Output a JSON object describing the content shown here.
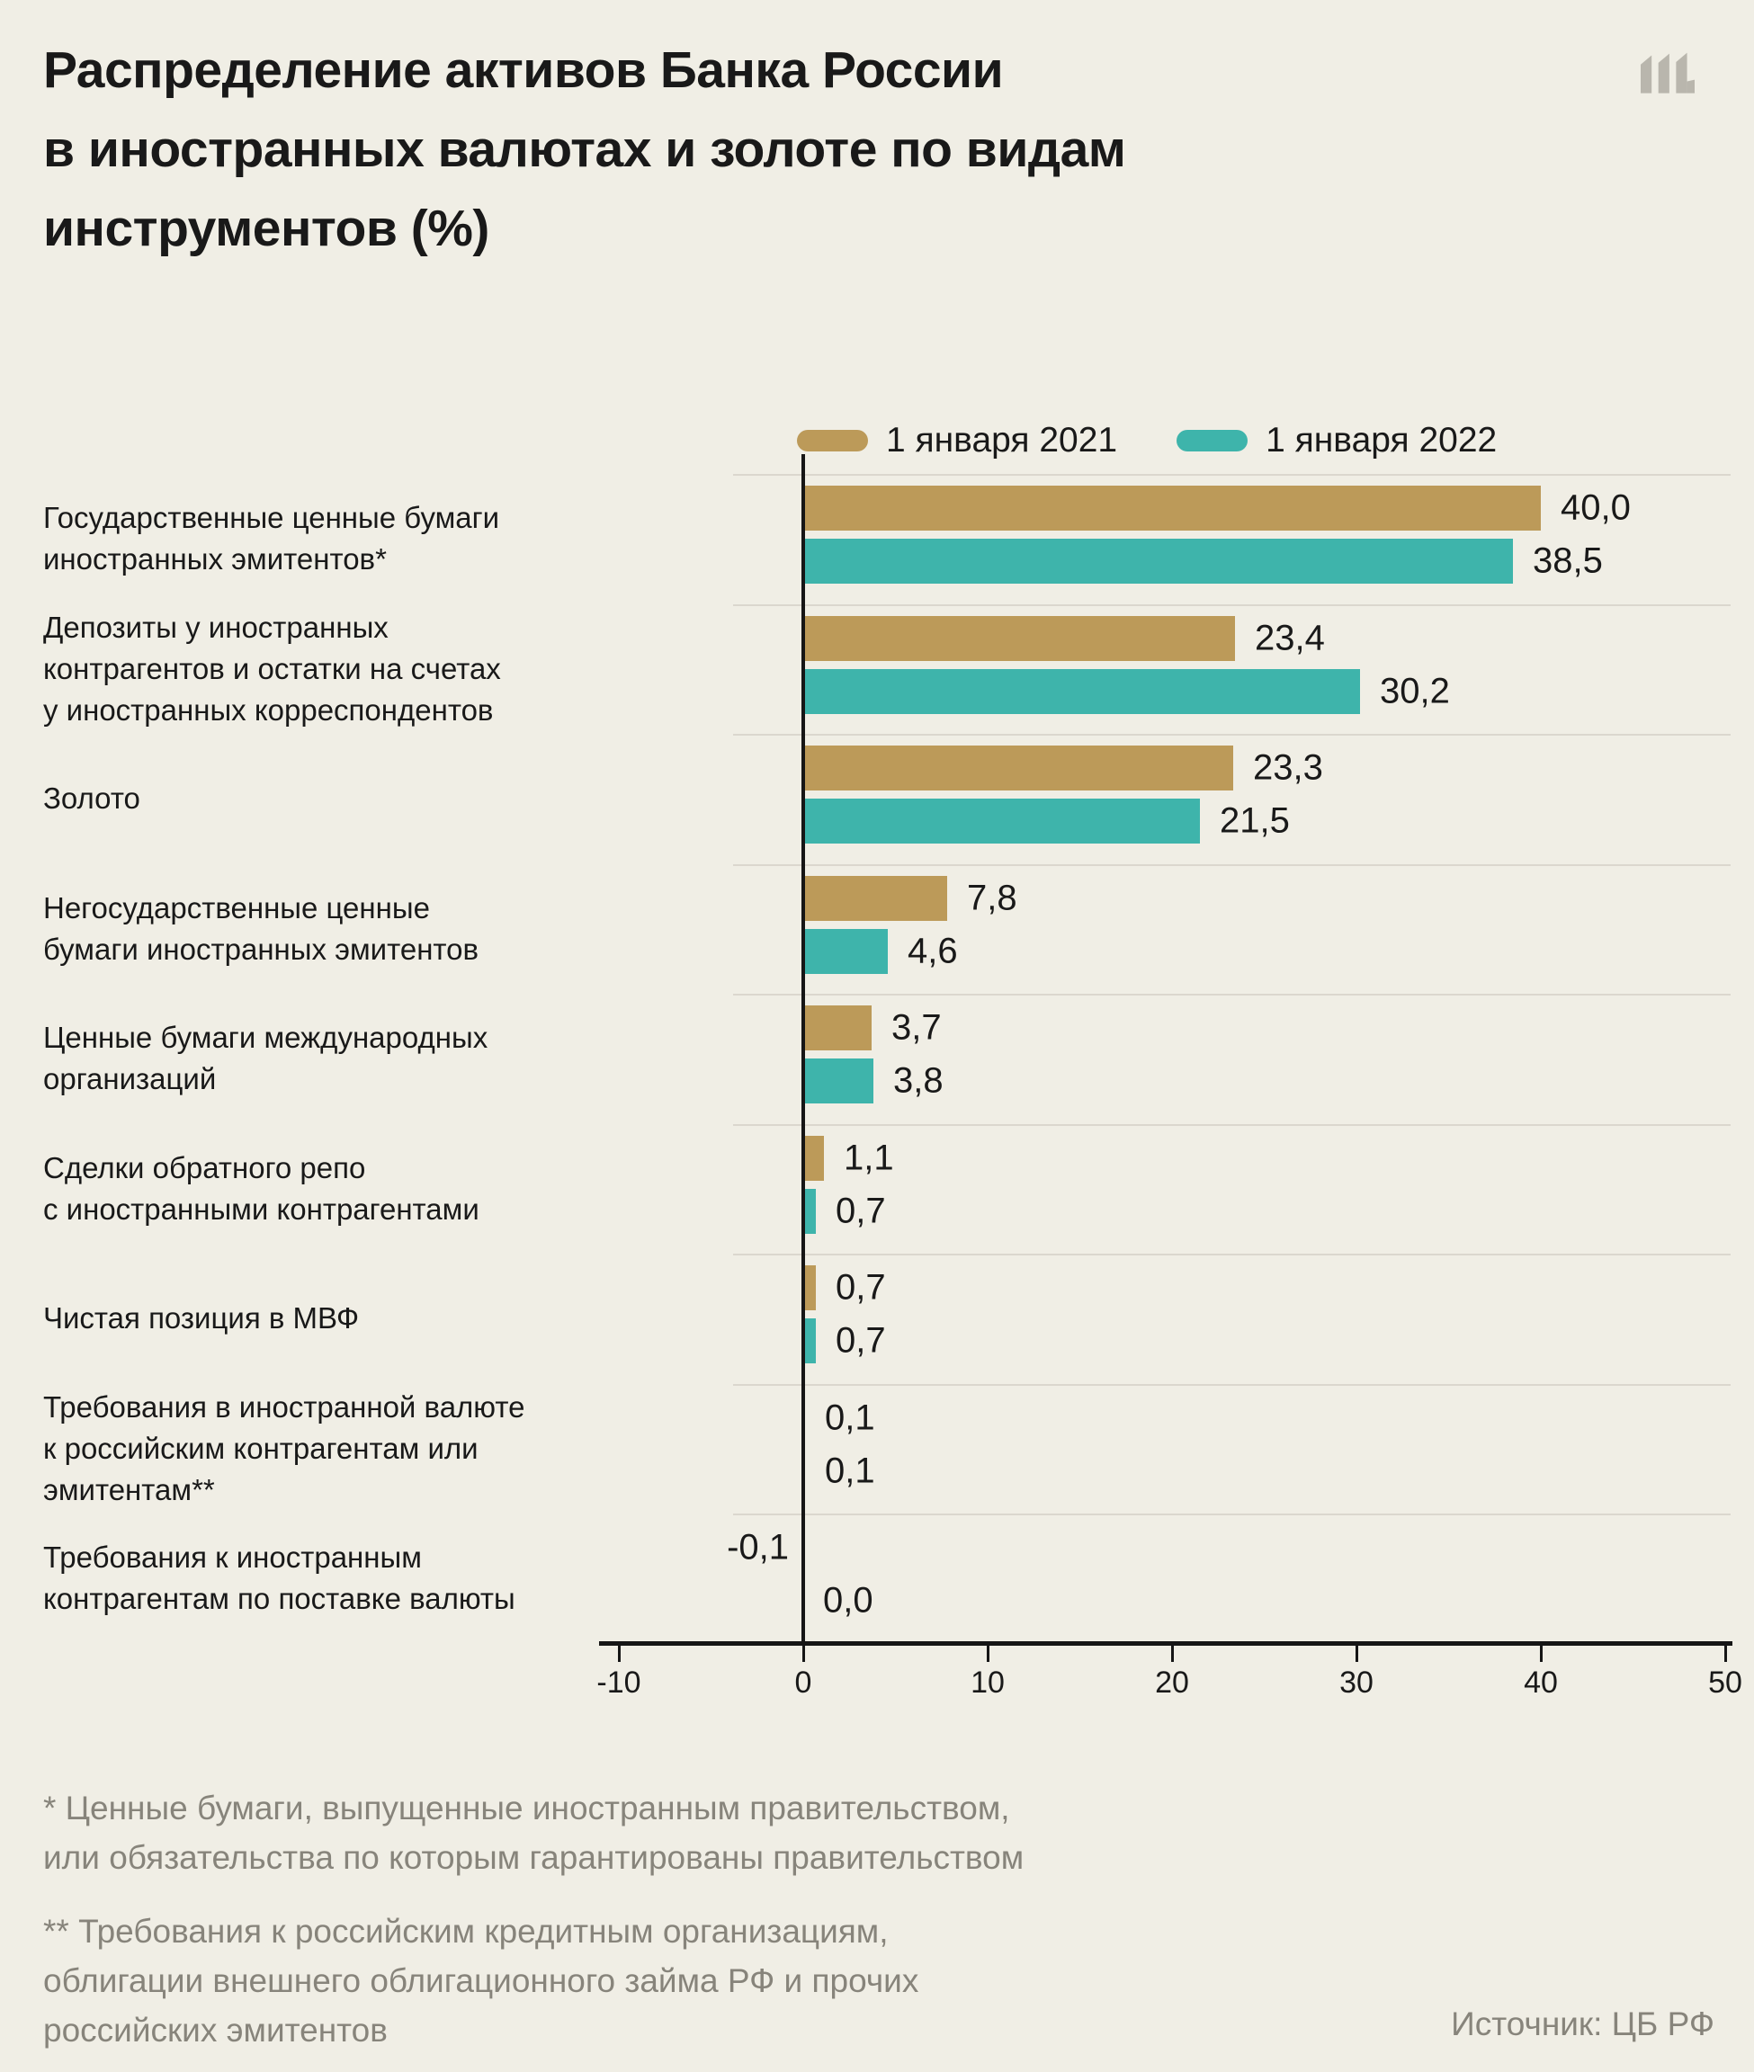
{
  "page": {
    "background": "#f0eee5"
  },
  "header": {
    "title_lines": [
      "Распределение активов Банка России",
      "в иностранных валютах и золоте по видам",
      "инструментов (%)"
    ],
    "logo": "meduza-m-logo",
    "logo_color": "#b9b6ad"
  },
  "legend": [
    {
      "label": "1 января 2021",
      "color": "#bc9a59"
    },
    {
      "label": "1 января 2022",
      "color": "#3eb4ab"
    }
  ],
  "chart_data": {
    "type": "bar",
    "orientation": "horizontal",
    "title": "Распределение активов Банка России в иностранных валютах и золоте по видам инструментов (%)",
    "xlabel": "",
    "ylabel": "",
    "xlim": [
      -10,
      50
    ],
    "ticks": [
      -10,
      0,
      10,
      20,
      30,
      40,
      50
    ],
    "tick_labels": [
      "-10",
      "0",
      "10",
      "20",
      "30",
      "40",
      "50"
    ],
    "grid": "off",
    "legend_position": "top",
    "categories": [
      {
        "lines": [
          "Государственные ценные бумаги",
          "иностранных эмитентов*"
        ]
      },
      {
        "lines": [
          "Депозиты у иностранных",
          "контрагентов и остатки на счетах",
          "у иностранных корреспондентов"
        ]
      },
      {
        "lines": [
          "Золото"
        ]
      },
      {
        "lines": [
          "Негосударственные ценные",
          "бумаги иностранных эмитентов"
        ]
      },
      {
        "lines": [
          "Ценные бумаги международных",
          "организаций"
        ]
      },
      {
        "lines": [
          "Сделки обратного репо",
          "с иностранными контрагентами"
        ]
      },
      {
        "lines": [
          "Чистая позиция в МВФ"
        ]
      },
      {
        "lines": [
          "Требования в иностранной валюте",
          "к российским контрагентам или",
          "эмитентам**"
        ]
      },
      {
        "lines": [
          "Требования к иностранным",
          "контрагентам по поставке валюты"
        ]
      }
    ],
    "series": [
      {
        "name": "1 января 2021",
        "color": "#bc9a59",
        "values": [
          40.0,
          23.4,
          23.3,
          7.8,
          3.7,
          1.1,
          0.7,
          0.1,
          -0.1
        ],
        "labels": [
          "40,0",
          "23,4",
          "23,3",
          "7,8",
          "3,7",
          "1,1",
          "0,7",
          "0,1",
          "-0,1"
        ]
      },
      {
        "name": "1 января 2022",
        "color": "#3eb4ab",
        "values": [
          38.5,
          30.2,
          21.5,
          4.6,
          3.8,
          0.7,
          0.7,
          0.1,
          0.0
        ],
        "labels": [
          "38,5",
          "30,2",
          "21,5",
          "4,6",
          "3,8",
          "0,7",
          "0,7",
          "0,1",
          "0,0"
        ]
      }
    ]
  },
  "footnotes": [
    {
      "lines": [
        "* Ценные бумаги, выпущенные иностранным правительством,",
        "или обязательства по которым гарантированы правительством"
      ]
    },
    {
      "lines": [
        "** Требования к российским кредитным организациям,",
        "облигации внешнего облигационного займа РФ и прочих",
        "российских эмитентов"
      ]
    }
  ],
  "source": "Источник: ЦБ РФ"
}
